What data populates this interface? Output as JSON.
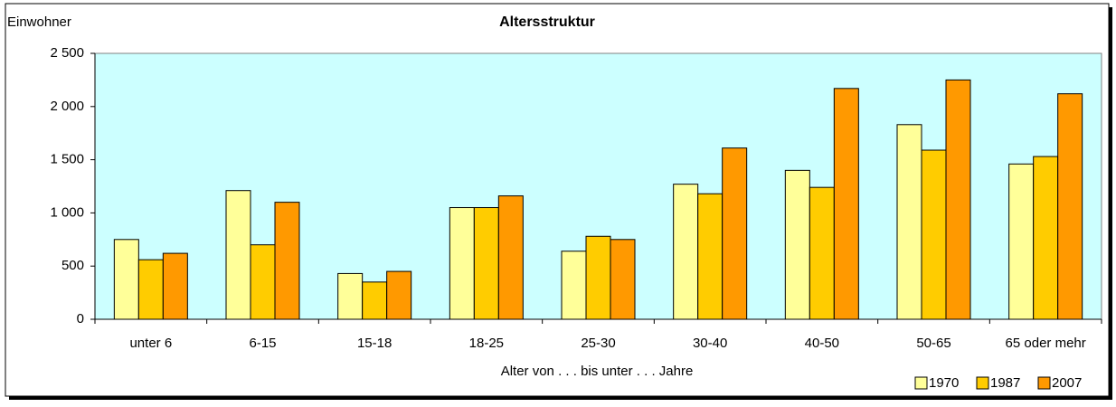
{
  "chart_data": {
    "type": "bar",
    "title": "Altersstruktur",
    "y_label": "Einwohner",
    "x_label": "Alter von . . . bis unter . . . Jahre",
    "categories": [
      "unter 6",
      "6-15",
      "15-18",
      "18-25",
      "25-30",
      "30-40",
      "40-50",
      "50-65",
      "65 oder mehr"
    ],
    "series": [
      {
        "name": "1970",
        "color": "#ffff99",
        "values": [
          750,
          1210,
          430,
          1050,
          640,
          1270,
          1400,
          1830,
          1460
        ]
      },
      {
        "name": "1987",
        "color": "#ffcc00",
        "values": [
          560,
          700,
          350,
          1050,
          780,
          1180,
          1240,
          1590,
          1530
        ]
      },
      {
        "name": "2007",
        "color": "#ff9900",
        "values": [
          620,
          1100,
          450,
          1160,
          750,
          1610,
          2170,
          2250,
          2120
        ]
      }
    ],
    "ylim": [
      0,
      2500
    ],
    "yticks": [
      0,
      500,
      {
        "value": 1000,
        "label": "1 000"
      },
      {
        "value": 1500,
        "label": "1 500"
      },
      {
        "value": 2000,
        "label": "2 000"
      },
      {
        "value": 2500,
        "label": "2 500"
      }
    ],
    "grid": false,
    "legend": "bottom-right",
    "plot_background": "#ccffff"
  }
}
